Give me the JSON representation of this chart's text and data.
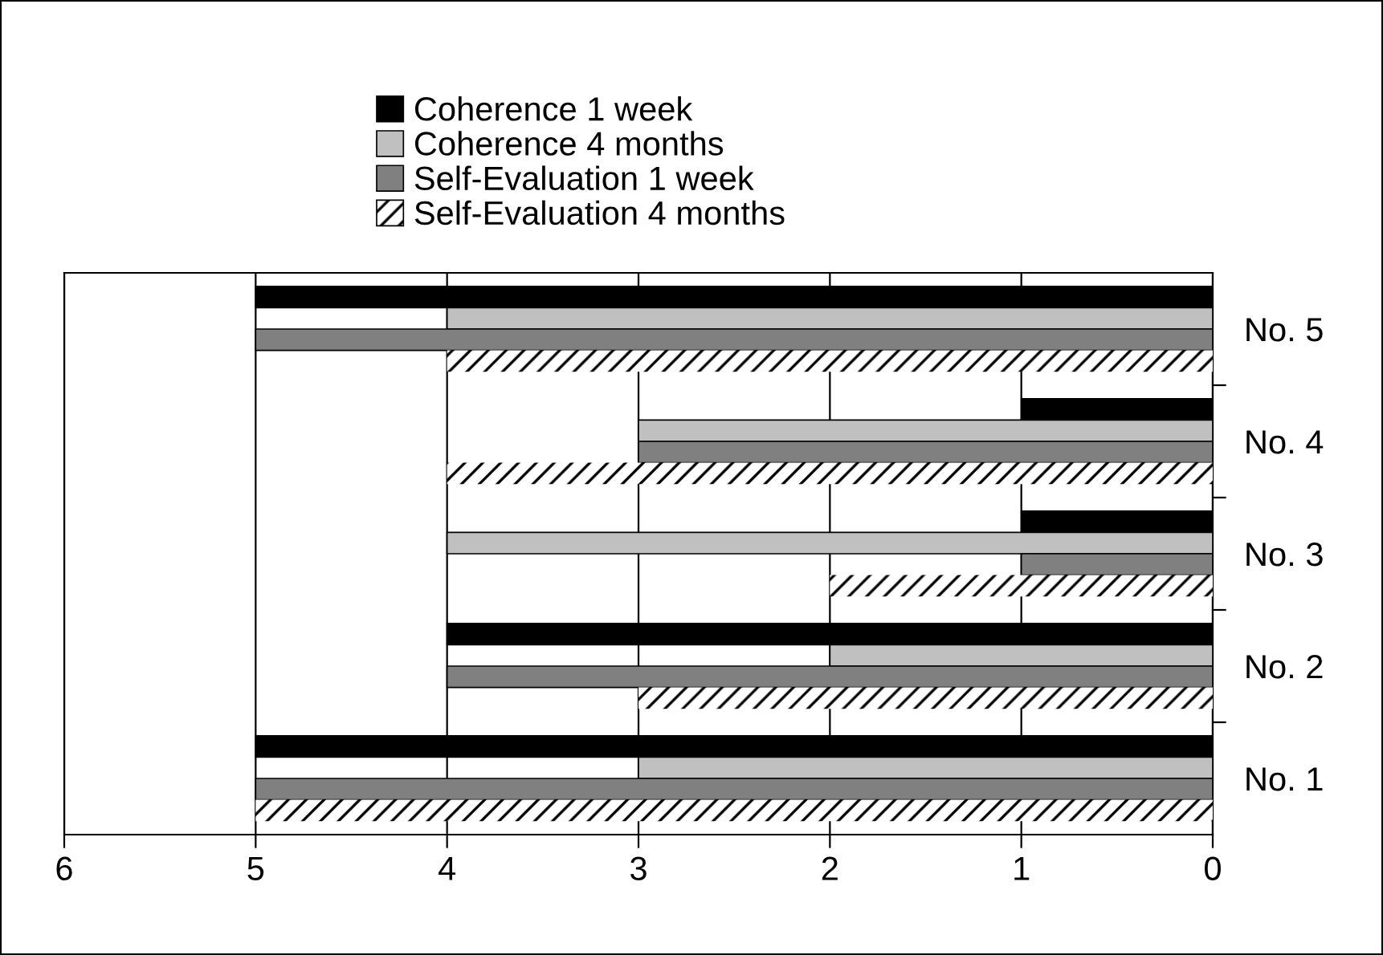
{
  "chart_data": {
    "type": "bar",
    "orientation": "horizontal",
    "categories": [
      "No. 5",
      "No. 4",
      "No. 3",
      "No. 2",
      "No. 1"
    ],
    "series": [
      {
        "name": "Coherence 1 week",
        "color": "#000000",
        "values": [
          5,
          1,
          1,
          4,
          5
        ]
      },
      {
        "name": "Coherence 4 months",
        "color": "#c0c0c0",
        "values": [
          4,
          3,
          4,
          2,
          3
        ]
      },
      {
        "name": "Self-Evaluation 1 week",
        "color": "#808080",
        "values": [
          5,
          3,
          1,
          4,
          5
        ]
      },
      {
        "name": "Self-Evaluation 4 months",
        "color": "#ffffff",
        "values": [
          4,
          4,
          2,
          3,
          5
        ]
      }
    ],
    "xlim": [
      6,
      0
    ],
    "xticks": [
      6,
      5,
      4,
      3,
      2,
      1,
      0
    ],
    "grid": "x",
    "legend": "top"
  }
}
